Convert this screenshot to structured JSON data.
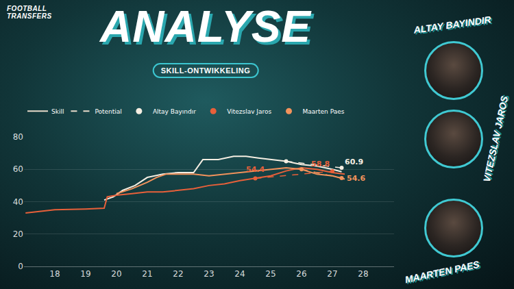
{
  "header": {
    "brand": [
      "FOOTBALL",
      "TRANSFERS"
    ],
    "title": "ANALYSE",
    "subtitle": "SKILL-ONTWIKKELING"
  },
  "players": [
    "ALTAY BAYINDIR",
    "VITEZSLAV JAROS",
    "MAARTEN PAES"
  ],
  "chart_data": {
    "type": "line",
    "legend": "top-left",
    "grid": true,
    "xlim": [
      17,
      29
    ],
    "xticks": [
      18,
      19,
      20,
      21,
      22,
      23,
      24,
      25,
      26,
      27,
      28
    ],
    "ylim": [
      0,
      80
    ],
    "yticks": [
      0,
      20,
      40,
      60,
      80
    ],
    "legend_keys": [
      {
        "name": "Skill",
        "color": "#e9dccb",
        "line_style": "solid"
      },
      {
        "name": "Potential",
        "color": "#e9dccb",
        "line_style": "dashed"
      }
    ],
    "series": [
      {
        "name": "Altay Bayındır",
        "color": "#f5eee2",
        "line_style": "solid",
        "x": [
          19.6,
          19.9,
          20.2,
          20.6,
          21,
          21.5,
          22,
          22.5,
          22.8,
          23.3,
          23.8,
          24.2,
          24.6,
          25,
          25.5,
          26,
          26.5,
          27,
          27.3
        ],
        "values": [
          41,
          43,
          47,
          50,
          55,
          57,
          58,
          58,
          66,
          66,
          68,
          68,
          67,
          66,
          65,
          63,
          62,
          60,
          58.5
        ],
        "potential": {
          "line_style": "dashed",
          "x": [
            25.5,
            27.3
          ],
          "values": [
            65,
            60.9
          ]
        }
      },
      {
        "name": "Vitezslav Jaros",
        "color": "#e8603a",
        "line_style": "solid",
        "x": [
          17.05,
          18,
          19,
          19.6,
          19.7,
          20,
          20.5,
          21,
          21.5,
          22,
          22.5,
          23,
          23.5,
          24,
          24.5,
          25,
          25.5,
          26,
          26.5,
          27,
          27.4
        ],
        "values": [
          33,
          35,
          35.5,
          36,
          43,
          44,
          45,
          46,
          46,
          47,
          48,
          50,
          51,
          53,
          54.4,
          56,
          59,
          61,
          60,
          58,
          57
        ],
        "potential": {
          "line_style": "dashed",
          "x": [
            24.5,
            27
          ],
          "values": [
            54.4,
            58.8
          ]
        }
      },
      {
        "name": "Maarten Paes",
        "color": "#f3935c",
        "line_style": "solid",
        "x": [
          20,
          20.5,
          21,
          21.3,
          21.6,
          22,
          22.5,
          23,
          23.5,
          24,
          24.5,
          25,
          25.5,
          26,
          26.5,
          27,
          27.4
        ],
        "values": [
          45,
          48,
          52,
          55,
          57,
          57,
          57,
          56,
          57,
          58,
          59,
          60,
          61,
          60,
          57,
          56,
          54
        ],
        "potential": {
          "line_style": "dashed",
          "x": [
            26,
            27.3
          ],
          "values": [
            60,
            54.6
          ]
        }
      }
    ],
    "annotations": [
      {
        "text": "60.9",
        "x": 27.3,
        "y": 60.9,
        "color": "#f5eee2"
      },
      {
        "text": "58.8",
        "x": 27,
        "y": 58.8,
        "color": "#e8603a"
      },
      {
        "text": "54.4",
        "x": 24.5,
        "y": 54.4,
        "color": "#e8603a"
      },
      {
        "text": "54.6",
        "x": 27.3,
        "y": 54.6,
        "color": "#f3935c"
      }
    ]
  }
}
